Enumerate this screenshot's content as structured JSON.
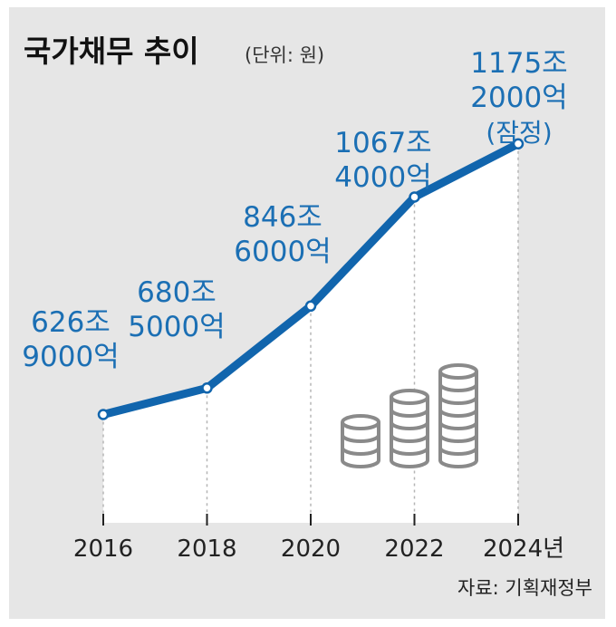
{
  "title": "국가채무 추이",
  "unit": "(단위: 원)",
  "source": "자료: 기획재정부",
  "colors": {
    "line": "#1165ad",
    "label": "#1b6fb4",
    "panel": "#e6e6e6",
    "coin": "#8a8a8a"
  },
  "chart_data": {
    "type": "area",
    "categories": [
      "2016",
      "2018",
      "2020",
      "2022",
      "2024년"
    ],
    "values": [
      626.9,
      680.5,
      846.6,
      1067.4,
      1175.2
    ],
    "value_labels": [
      [
        "626조",
        "9000억"
      ],
      [
        "680조",
        "5000억"
      ],
      [
        "846조",
        "6000억"
      ],
      [
        "1067조",
        "4000억"
      ],
      [
        "1175조",
        "2000억",
        "(잠정)"
      ]
    ],
    "ylim": [
      380,
      1250
    ],
    "grid": false,
    "legend": "none"
  }
}
